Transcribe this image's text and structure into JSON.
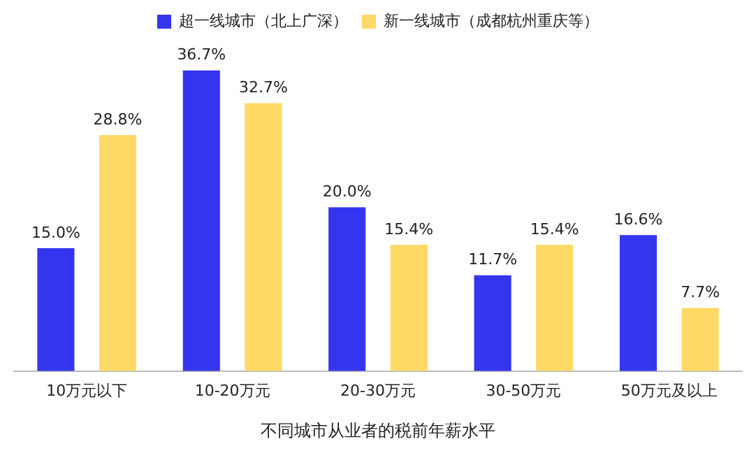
{
  "chart_data": {
    "type": "bar",
    "xlabel": "不同城市从业者的税前年薪水平",
    "categories": [
      "10万元以下",
      "10-20万元",
      "20-30万元",
      "30-50万元",
      "50万元及以上"
    ],
    "series": [
      {
        "name": "超一线城市（北上广深）",
        "color": "#3535f0",
        "values": [
          15.0,
          36.7,
          20.0,
          11.7,
          16.6
        ],
        "value_labels": [
          "15.0%",
          "36.7%",
          "20.0%",
          "11.7%",
          "16.6%"
        ]
      },
      {
        "name": "新一线城市（成都杭州重庆等）",
        "color": "#ffd966",
        "values": [
          28.8,
          32.7,
          15.4,
          15.4,
          7.7
        ],
        "value_labels": [
          "28.8%",
          "32.7%",
          "15.4%",
          "15.4%",
          "7.7%"
        ]
      }
    ],
    "grid": false,
    "legend": "top"
  }
}
